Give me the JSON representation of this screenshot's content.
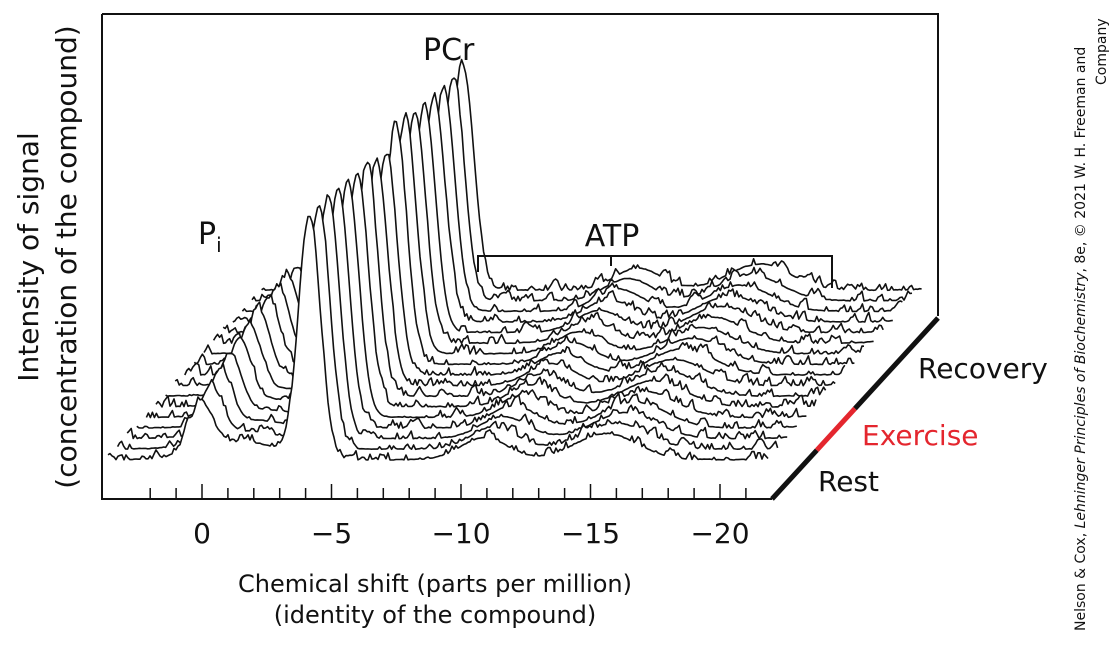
{
  "chart_data": {
    "type": "line",
    "title": "",
    "ylabel_line1": "Intensity of signal",
    "ylabel_line2": "(concentration of the compound)",
    "xlabel_line1": "Chemical shift (parts per million)",
    "xlabel_line2": "(identity of the compound)",
    "x_ticks": [
      {
        "value": 0,
        "label": "0"
      },
      {
        "value": -5,
        "label": "−5"
      },
      {
        "value": -10,
        "label": "−10"
      },
      {
        "value": -15,
        "label": "−15"
      },
      {
        "value": -20,
        "label": "−20"
      }
    ],
    "xlim": [
      2.5,
      -23
    ],
    "num_spectra": 17,
    "peaks": [
      {
        "label": "P",
        "subscript": "i",
        "ppm": 0,
        "relative_height": 0.33
      },
      {
        "label": "PCr",
        "ppm": -4.2,
        "relative_height": 1.0
      }
    ],
    "atp_bracket": {
      "label": "ATP",
      "from_ppm": -10.7,
      "center_ppm": -16,
      "to_ppm": -24.5
    },
    "time_axis": {
      "segments": [
        {
          "label": "Rest",
          "color": "#111111"
        },
        {
          "label": "Exercise",
          "color": "#e4262e"
        },
        {
          "label": "Recovery",
          "color": "#111111"
        }
      ]
    }
  },
  "credit": {
    "part1": "Nelson & Cox, ",
    "italic": "Lehninger Principles of Biochemistry",
    "part2": ", 8e, © 2021 W. H. Freeman and",
    "line2": "Company"
  }
}
